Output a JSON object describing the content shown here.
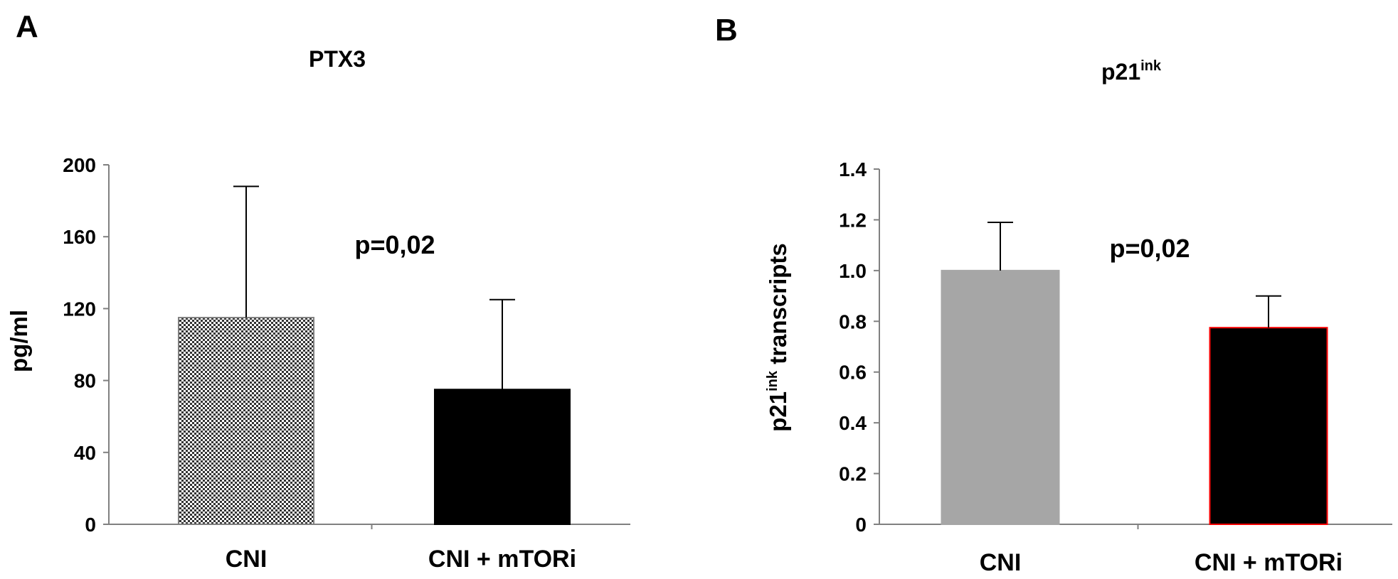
{
  "chart_data": [
    {
      "panel": "A",
      "type": "bar",
      "title": "PTX3",
      "ylabel": "pg/ml",
      "categories": [
        "CNI",
        "CNI + mTORi"
      ],
      "values": [
        115,
        75
      ],
      "error_upper": [
        188,
        125
      ],
      "ylim": [
        0,
        200
      ],
      "yticks": [
        "0",
        "40",
        "80",
        "120",
        "160",
        "200"
      ],
      "annotation": "p=0,02",
      "bar_fills": [
        "checker",
        "#000000"
      ],
      "bar_strokes": [
        "#7f7f7f",
        "#000000"
      ],
      "grid": false
    },
    {
      "panel": "B",
      "type": "bar",
      "title_main": "p21",
      "title_sup": "ink",
      "ylabel_main": "p21",
      "ylabel_sup": "ink",
      "ylabel_rest": " transcripts",
      "categories": [
        "CNI",
        "CNI + mTORi"
      ],
      "values": [
        1.0,
        0.775
      ],
      "error_upper": [
        1.19,
        0.9
      ],
      "ylim": [
        0,
        1.4
      ],
      "yticks": [
        "0",
        "0.2",
        "0.4",
        "0.6",
        "0.8",
        "1.0",
        "1.2",
        "1.4"
      ],
      "annotation": "p=0,02",
      "bar_fills": [
        "#a6a6a6",
        "#000000"
      ],
      "bar_strokes": [
        "#a6a6a6",
        "#ff0000"
      ],
      "grid": false
    }
  ]
}
